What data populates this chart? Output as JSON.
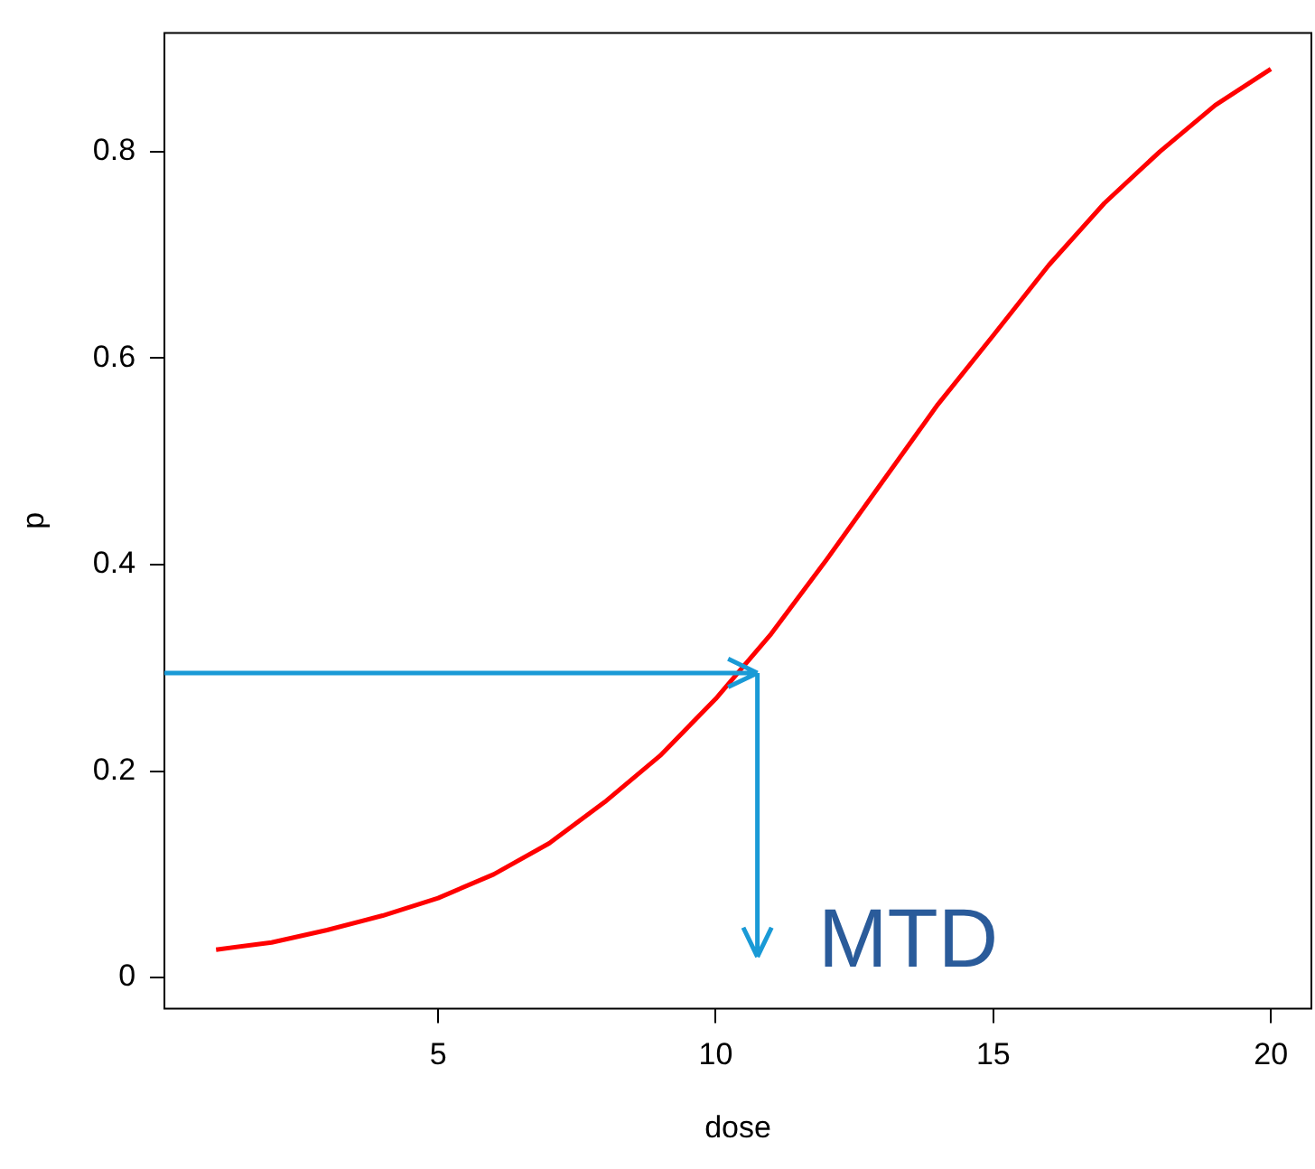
{
  "chart_data": {
    "type": "line",
    "xlabel": "dose",
    "ylabel": "p",
    "x": [
      1,
      2,
      3,
      4,
      5,
      6,
      7,
      8,
      9,
      10,
      11,
      12,
      13,
      14,
      15,
      16,
      17,
      18,
      19,
      20
    ],
    "series": [
      {
        "color": "#ff0000",
        "values": [
          0.027,
          0.034,
          0.046,
          0.06,
          0.077,
          0.1,
          0.13,
          0.17,
          0.215,
          0.27,
          0.333,
          0.405,
          0.48,
          0.555,
          0.622,
          0.69,
          0.75,
          0.8,
          0.845,
          0.88
        ]
      }
    ],
    "xlim": [
      0.07,
      20.73
    ],
    "ylim": [
      -0.03,
      0.915
    ],
    "xticks": [
      5,
      10,
      15,
      20
    ],
    "yticks": [
      0,
      0.2,
      0.4,
      0.6,
      0.8
    ],
    "grid": false,
    "legend": false,
    "marker": "none",
    "line_style": "solid",
    "annotations": [
      "MTD"
    ]
  }
}
